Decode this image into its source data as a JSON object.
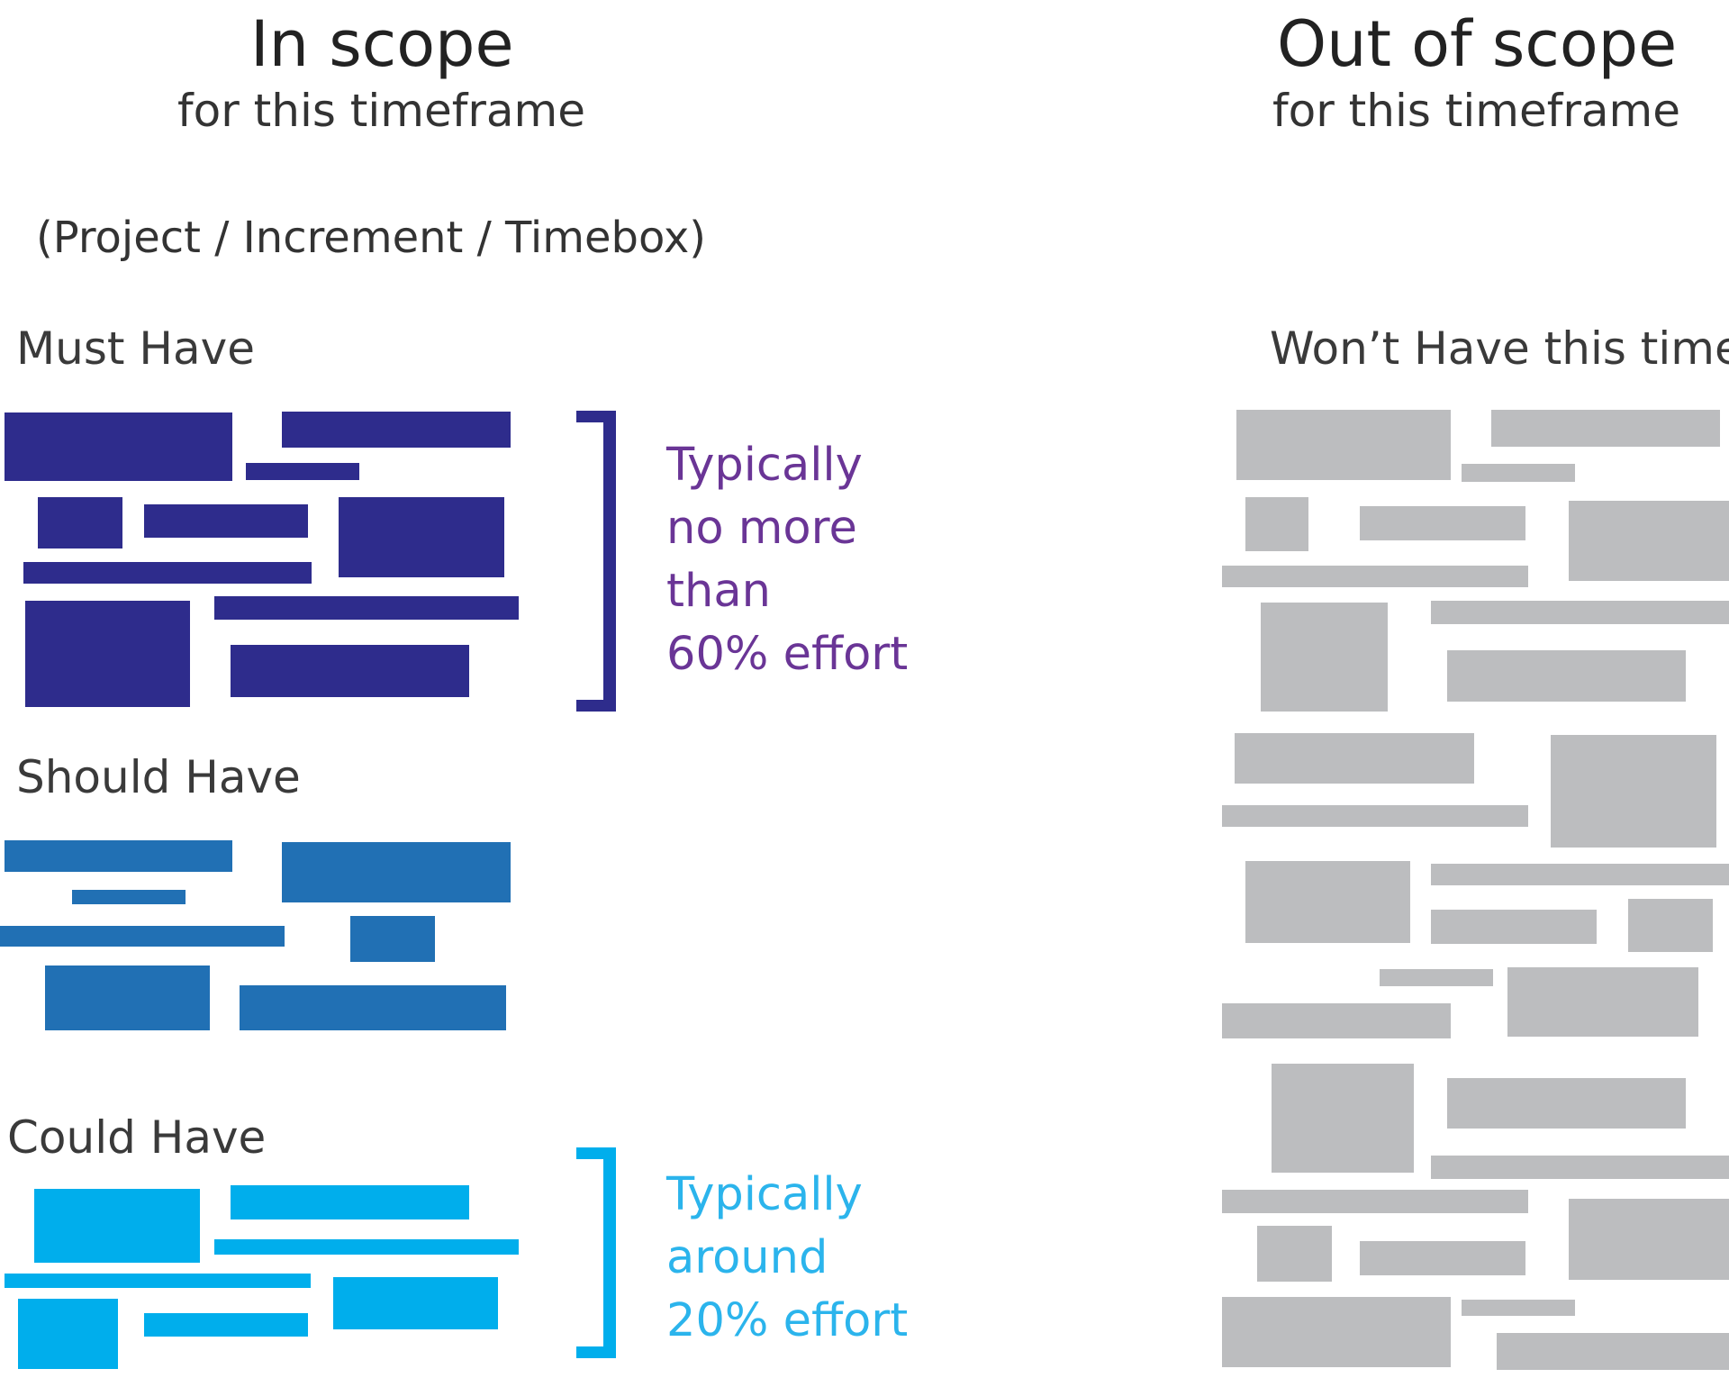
{
  "colors": {
    "must": "#2e2c8c",
    "should": "#2170b4",
    "could": "#00aeec",
    "wont": "#bcbdbf",
    "must_text": "#6a3596",
    "could_text": "#2bb4ec"
  },
  "in_scope": {
    "title": "In scope",
    "subtitle": "for this timeframe",
    "parenthetical": "(Project / Increment / Timebox)",
    "must": {
      "label": "Must Have",
      "note": [
        "Typically",
        "no more",
        "than",
        "60% effort"
      ]
    },
    "should": {
      "label": "Should Have"
    },
    "could": {
      "label": "Could Have",
      "note": [
        "Typically",
        "around",
        "20% effort"
      ]
    }
  },
  "out_of_scope": {
    "title": "Out of scope",
    "subtitle": "for this timeframe",
    "wont": {
      "label": "Won’t Have this time"
    }
  }
}
